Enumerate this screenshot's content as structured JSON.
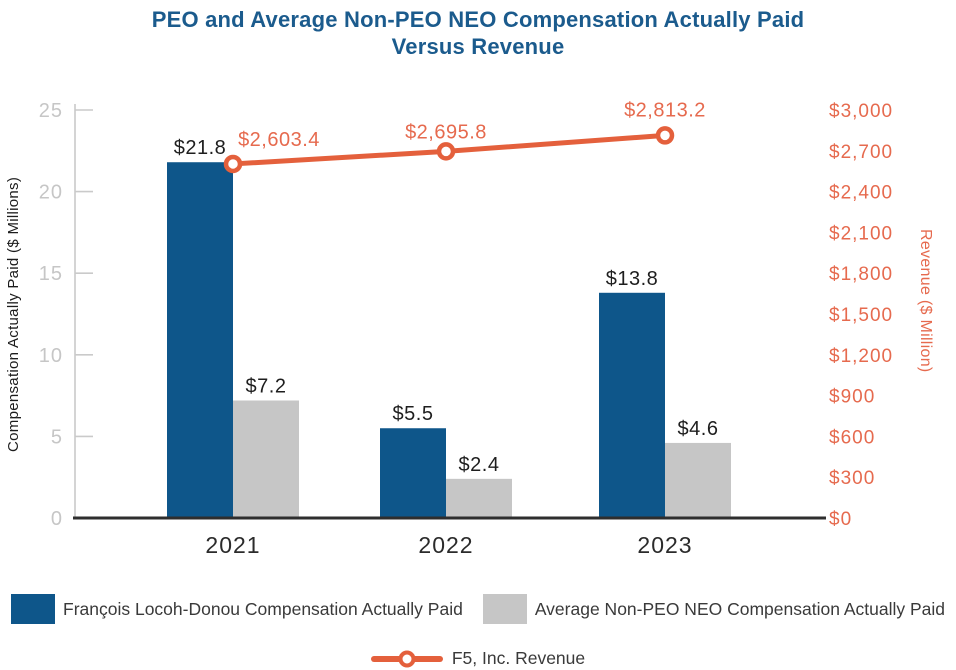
{
  "title": {
    "line1": "PEO and Average Non-PEO NEO Compensation Actually Paid",
    "line2": "Versus Revenue"
  },
  "colors": {
    "title_blue": "#1B5B8D",
    "peo_blue": "#0E568A",
    "neo_gray": "#C6C6C6",
    "revenue_orange": "#E4603C",
    "revenue_orange_text": "#E66A4E",
    "axis_gray": "#CACACA",
    "tick_label_gray": "#C6C6C6",
    "dark_text": "#1E1E1E"
  },
  "chart_data": {
    "type": "bar",
    "subtype": "grouped-bars-with-line",
    "title": "PEO and Average Non-PEO NEO Compensation Actually Paid Versus Revenue",
    "categories": [
      "2021",
      "2022",
      "2023"
    ],
    "bar_series": [
      {
        "name": "François Locoh-Donou Compensation Actually Paid",
        "color_key": "peo_blue",
        "values": [
          21.8,
          5.5,
          13.8
        ],
        "labels": [
          "$21.8",
          "$5.5",
          "$13.8"
        ]
      },
      {
        "name": "Average Non-PEO NEO Compensation Actually Paid",
        "color_key": "neo_gray",
        "values": [
          7.2,
          2.4,
          4.6
        ],
        "labels": [
          "$7.2",
          "$2.4",
          "$4.6"
        ]
      }
    ],
    "line_series": {
      "name": "F5, Inc. Revenue",
      "axis": "right",
      "values": [
        2603.4,
        2695.8,
        2813.2
      ],
      "labels": [
        "$2,603.4",
        "$2,695.8",
        "$2,813.2"
      ]
    },
    "left_axis": {
      "title": "Compensation Actually Paid ($ Millions)",
      "min": 0,
      "max": 25,
      "step": 5,
      "tick_labels": [
        "0",
        "5",
        "10",
        "15",
        "20",
        "25"
      ]
    },
    "right_axis": {
      "title": "Revenue ($ Million)",
      "min": 0,
      "max": 3000,
      "step": 300,
      "tick_labels": [
        "$0",
        "$300",
        "$600",
        "$900",
        "$1,200",
        "$1,500",
        "$1,800",
        "$2,100",
        "$2,400",
        "$2,700",
        "$3,000"
      ]
    },
    "grid": false,
    "legend_position": "bottom"
  }
}
